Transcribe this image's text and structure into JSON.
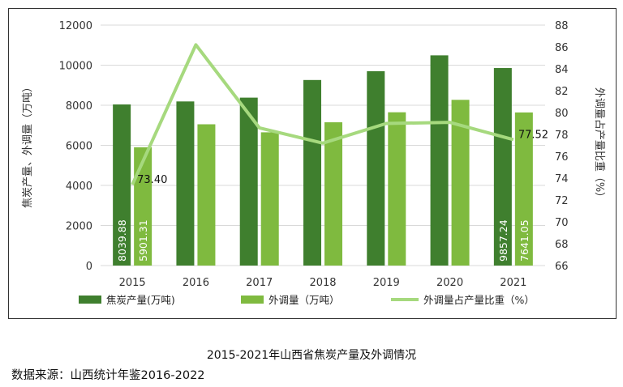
{
  "caption": "2015-2021年山西省焦炭产量及外调情况",
  "source": "数据来源：山西统计年鉴2016-2022",
  "chart_data": {
    "type": "bar",
    "categories": [
      "2015",
      "2016",
      "2017",
      "2018",
      "2019",
      "2020",
      "2021"
    ],
    "series": [
      {
        "name": "焦炭产量(万吨)",
        "type": "bar",
        "axis": "left",
        "color": "#3f7f2e",
        "values": [
          8039.88,
          8190,
          8380,
          9260,
          9700,
          10490,
          9857.24
        ],
        "labels": [
          "8039.88",
          "",
          "",
          "",
          "",
          "",
          "9857.24"
        ]
      },
      {
        "name": "外调量（万吨）",
        "type": "bar",
        "axis": "left",
        "color": "#7fba3f",
        "values": [
          5901.31,
          7050,
          6650,
          7150,
          7650,
          8270,
          7641.05
        ],
        "labels": [
          "5901.31",
          "",
          "",
          "",
          "",
          "",
          "7641.05"
        ]
      },
      {
        "name": "外调量占产量比重（%）",
        "type": "line",
        "axis": "right",
        "color": "#a6d97e",
        "values": [
          73.4,
          86.2,
          78.6,
          77.2,
          79.0,
          79.1,
          77.52
        ],
        "labels": [
          "73.40",
          "",
          "",
          "",
          "",
          "",
          "77.52"
        ]
      }
    ],
    "ylabel": "焦炭产量、外调量（万吨）",
    "y2label": "外调量占产量比重（%）",
    "ylim": [
      0,
      12000
    ],
    "yticks": [
      "0",
      "2000",
      "4000",
      "6000",
      "8000",
      "10000",
      "12000"
    ],
    "y2lim": [
      66,
      88
    ],
    "y2ticks": [
      "66",
      "68",
      "70",
      "72",
      "74",
      "76",
      "78",
      "80",
      "82",
      "84",
      "86",
      "88"
    ],
    "grid": true,
    "legend": "bottom"
  }
}
